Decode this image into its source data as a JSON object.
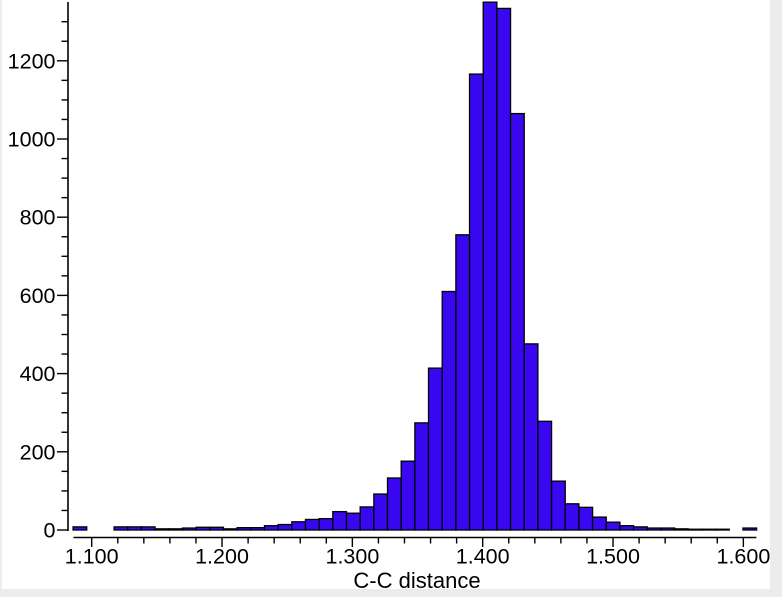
{
  "chart_data": {
    "type": "bar",
    "subtype": "histogram",
    "title": "",
    "xlabel": "C-C distance",
    "ylabel": "",
    "legend": "none",
    "grid": false,
    "x_axis": {
      "axis_min": 1.086,
      "axis_max": 1.61,
      "tick_values": [
        1.1,
        1.2,
        1.3,
        1.4,
        1.5,
        1.6
      ],
      "tick_labels": [
        "1.100",
        "1.200",
        "1.300",
        "1.400",
        "1.500",
        "1.600"
      ],
      "minor_tick_step": 0.02,
      "minor_tick_min": 1.1,
      "minor_tick_max": 1.6
    },
    "y_axis": {
      "axis_min": 0,
      "axis_max": 1355,
      "tick_values": [
        0,
        200,
        400,
        600,
        800,
        1000,
        1200
      ],
      "tick_labels": [
        "0",
        "200",
        "400",
        "600",
        "800",
        "1000",
        "1200"
      ],
      "minor_tick_step": 50,
      "minor_tick_min": 0,
      "minor_tick_max": 1300
    },
    "bins": {
      "start": 1.0857,
      "width": 0.01049,
      "counts": [
        8,
        0,
        0,
        8,
        8,
        8,
        3,
        3,
        5,
        7,
        7,
        3,
        6,
        6,
        11,
        14,
        21,
        27,
        29,
        47,
        43,
        59,
        92,
        133,
        176,
        274,
        414,
        610,
        755,
        1166,
        1350,
        1334,
        1065,
        476,
        278,
        125,
        67,
        58,
        33,
        20,
        11,
        8,
        5,
        5,
        3,
        2,
        2,
        2,
        0,
        5
      ]
    },
    "style": {
      "bar_fill": "#3908f0",
      "bar_stroke": "#000000",
      "axis_color": "#000000",
      "plot_background": "#ffffff",
      "window_margin_color": "#ececec"
    }
  }
}
